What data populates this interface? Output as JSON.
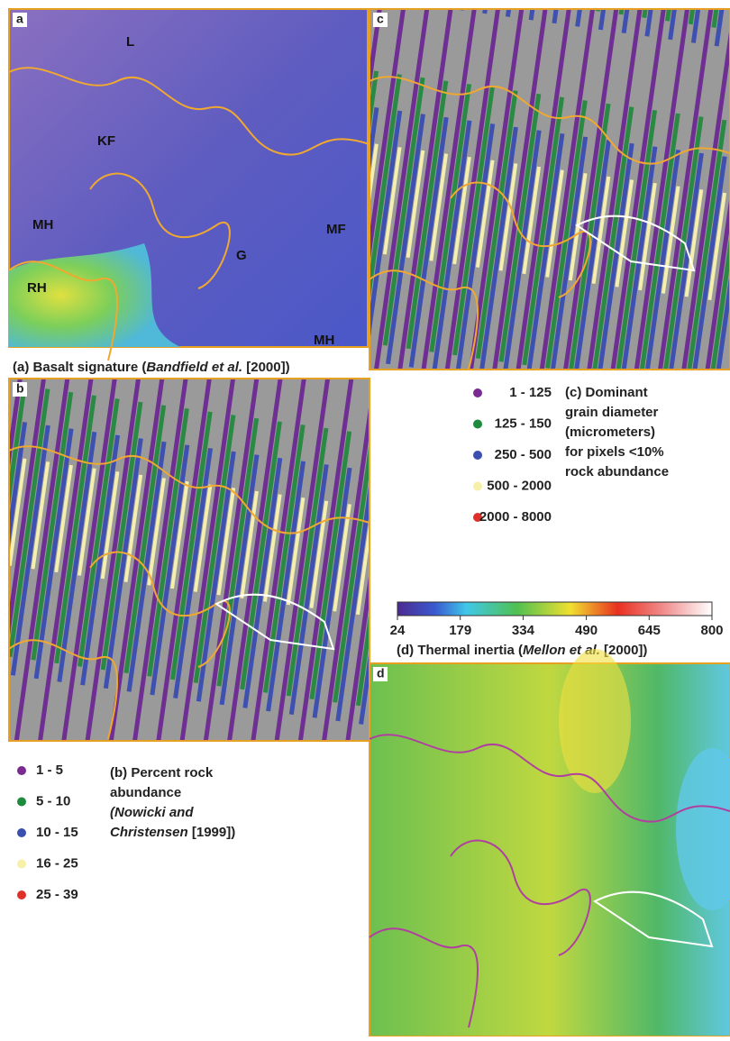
{
  "panel_a": {
    "letter": "a",
    "labels": [
      "L",
      "KF",
      "MH",
      "MF",
      "G",
      "RH",
      "MH"
    ]
  },
  "caption_a": [
    "(a) Basalt signature (",
    "Bandfield et al.",
    " [2000])"
  ],
  "panel_b": {
    "letter": "b"
  },
  "panel_c": {
    "letter": "c"
  },
  "panel_d": {
    "letter": "d"
  },
  "legend_c": {
    "items": [
      {
        "label": "1 - 125",
        "color": "#7a2a90"
      },
      {
        "label": "125 - 150",
        "color": "#1e8a3e"
      },
      {
        "label": "250 - 500",
        "color": "#3a4fb0"
      },
      {
        "label": "500 - 2000",
        "color": "#f7f0a8"
      },
      {
        "label": "2000 - 8000",
        "color": "#e0302a"
      }
    ],
    "title": [
      "(c) Dominant",
      "grain diameter",
      "(micrometers)",
      "for pixels <10%",
      "rock abundance"
    ]
  },
  "colorbar": {
    "range": [
      24,
      800
    ],
    "ticks": [
      24,
      179,
      334,
      490,
      645,
      800
    ]
  },
  "caption_d": [
    "(d) Thermal inertia (",
    "Mellon et al.",
    " [2000])"
  ],
  "legend_b": {
    "items": [
      {
        "label": "1 - 5",
        "color": "#7a2a90"
      },
      {
        "label": "5 - 10",
        "color": "#1e8a3e"
      },
      {
        "label": "10 - 15",
        "color": "#3a4fb0"
      },
      {
        "label": "16 - 25",
        "color": "#f7f0a8"
      },
      {
        "label": "25 - 39",
        "color": "#e0302a"
      }
    ],
    "title": [
      "(b) Percent rock",
      "abundance",
      "(Nowicki and",
      "Christensen",
      " [1999])"
    ]
  }
}
